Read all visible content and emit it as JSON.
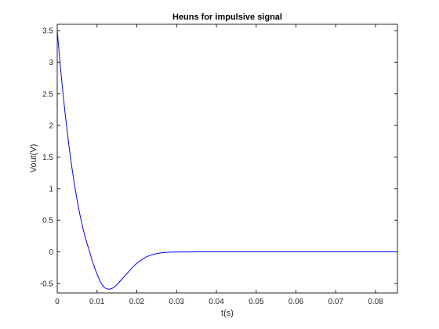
{
  "chart_data": {
    "type": "line",
    "title": "Heuns for impulsive signal",
    "xlabel": "t(s)",
    "ylabel": "Vout(V)",
    "xlim": [
      0,
      0.0855
    ],
    "ylim": [
      -0.65,
      3.6
    ],
    "xticks": [
      0,
      0.01,
      0.02,
      0.03,
      0.04,
      0.05,
      0.06,
      0.07,
      0.08
    ],
    "xtick_labels": [
      "0",
      "0.01",
      "0.02",
      "0.03",
      "0.04",
      "0.05",
      "0.06",
      "0.07",
      "0.08"
    ],
    "yticks": [
      -0.5,
      0,
      0.5,
      1,
      1.5,
      2,
      2.5,
      3,
      3.5
    ],
    "ytick_labels": [
      "-0.5",
      "0",
      "0.5",
      "1",
      "1.5",
      "2",
      "2.5",
      "3",
      "3.5"
    ],
    "grid": false,
    "series": [
      {
        "color": "#0000ff",
        "x": [
          0,
          0.001,
          0.002,
          0.003,
          0.004,
          0.005,
          0.006,
          0.007,
          0.008,
          0.009,
          0.01,
          0.011,
          0.012,
          0.013,
          0.014,
          0.015,
          0.016,
          0.017,
          0.018,
          0.019,
          0.02,
          0.021,
          0.022,
          0.023,
          0.024,
          0.025,
          0.026,
          0.027,
          0.028,
          0.03,
          0.032,
          0.034,
          0.036,
          0.038,
          0.04,
          0.045,
          0.05,
          0.06,
          0.07,
          0.08,
          0.0855
        ],
        "y": [
          3.5,
          2.79,
          2.18,
          1.65,
          1.2,
          0.82,
          0.5,
          0.24,
          0.03,
          -0.18,
          -0.35,
          -0.49,
          -0.57,
          -0.59,
          -0.57,
          -0.52,
          -0.45,
          -0.38,
          -0.31,
          -0.24,
          -0.18,
          -0.133,
          -0.094,
          -0.064,
          -0.042,
          -0.027,
          -0.016,
          -0.009,
          -0.005,
          -0.002,
          -0.0008,
          -0.0003,
          -0.0001,
          0,
          0,
          0,
          0,
          0,
          0,
          0,
          0
        ]
      }
    ]
  }
}
